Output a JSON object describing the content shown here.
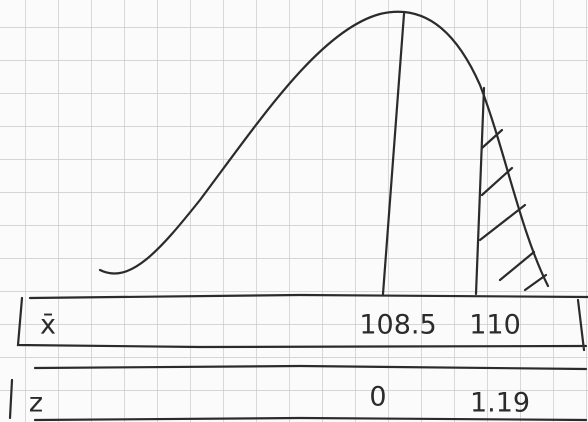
{
  "rows": [
    {
      "variable": "x̄",
      "values": [
        108.5,
        110
      ]
    },
    {
      "variable": "z",
      "values": [
        0,
        1.19
      ]
    }
  ]
}
